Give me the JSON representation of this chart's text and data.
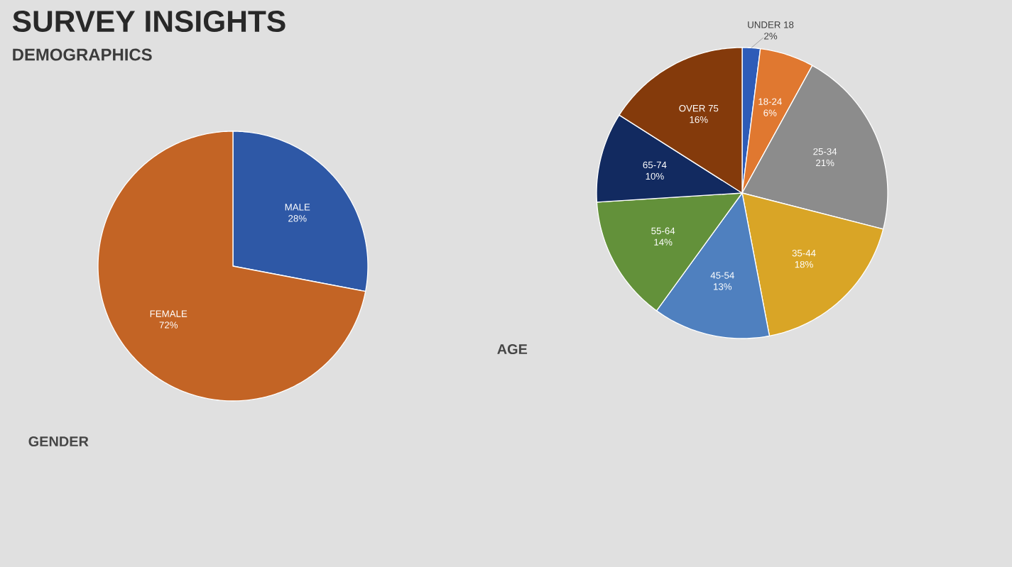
{
  "chart_data": [
    {
      "type": "pie",
      "title": "GENDER",
      "annotations": [
        "SURVEY INSIGHTS",
        "DEMOGRAPHICS"
      ],
      "categories": [
        "MALE",
        "FEMALE"
      ],
      "values": [
        28,
        72
      ],
      "colors": [
        "#2e58a6",
        "#c36425"
      ],
      "value_labels": [
        "28%",
        "72%"
      ]
    },
    {
      "type": "pie",
      "title": "AGE",
      "categories": [
        "UNDER 18",
        "18-24",
        "25-34",
        "35-44",
        "45-54",
        "55-64",
        "65-74",
        "OVER 75"
      ],
      "values": [
        2,
        6,
        21,
        18,
        13,
        14,
        10,
        16
      ],
      "colors": [
        "#2e5cb8",
        "#e07830",
        "#8c8c8c",
        "#d9a526",
        "#4f80bf",
        "#63913a",
        "#122a60",
        "#843a0b"
      ],
      "value_labels": [
        "2%",
        "6%",
        "21%",
        "18%",
        "13%",
        "14%",
        "10%",
        "16%"
      ]
    }
  ]
}
